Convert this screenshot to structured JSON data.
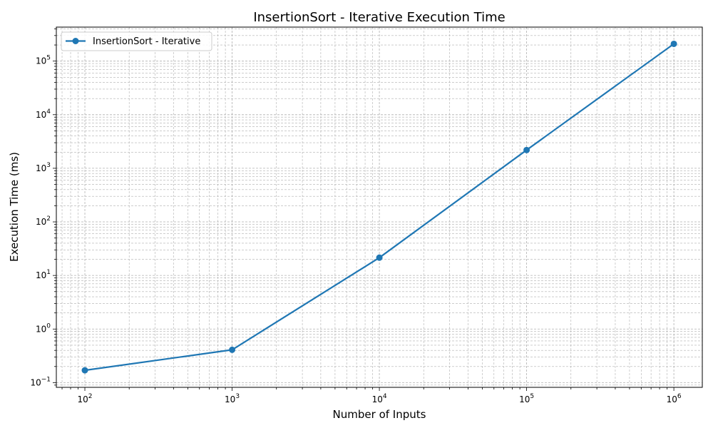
{
  "chart_data": {
    "type": "line",
    "title": "InsertionSort - Iterative Execution Time",
    "xlabel": "Number of Inputs",
    "ylabel": "Execution Time (ms)",
    "xscale": "log",
    "yscale": "log",
    "xlim": [
      64,
      1560000
    ],
    "ylim": [
      0.0817,
      431000
    ],
    "grid": "major and minor, dashed",
    "legend_position": "top-left",
    "x_ticks": [
      {
        "base": "10",
        "exp": "2",
        "value": 100
      },
      {
        "base": "10",
        "exp": "3",
        "value": 1000
      },
      {
        "base": "10",
        "exp": "4",
        "value": 10000
      },
      {
        "base": "10",
        "exp": "5",
        "value": 100000
      },
      {
        "base": "10",
        "exp": "6",
        "value": 1000000
      }
    ],
    "y_ticks": [
      {
        "base": "10",
        "exp": "−1",
        "value": 0.1
      },
      {
        "base": "10",
        "exp": "0",
        "value": 1
      },
      {
        "base": "10",
        "exp": "1",
        "value": 10
      },
      {
        "base": "10",
        "exp": "2",
        "value": 100
      },
      {
        "base": "10",
        "exp": "3",
        "value": 1000
      },
      {
        "base": "10",
        "exp": "4",
        "value": 10000
      },
      {
        "base": "10",
        "exp": "5",
        "value": 100000
      }
    ],
    "series": [
      {
        "name": "InsertionSort - Iterative",
        "color": "#1f77b4",
        "x": [
          100,
          1000,
          10000,
          100000,
          1000000
        ],
        "y": [
          0.17,
          0.41,
          21.5,
          2190,
          210000
        ]
      }
    ]
  }
}
